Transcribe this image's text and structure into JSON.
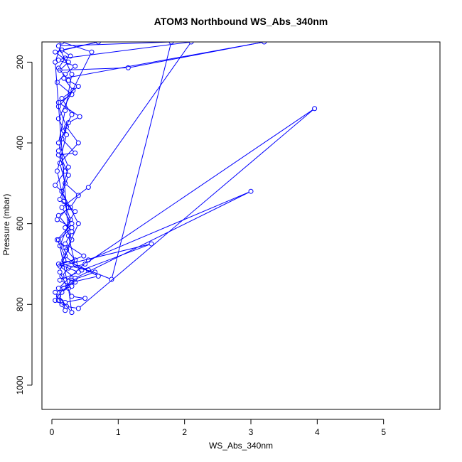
{
  "chart_data": {
    "type": "line",
    "title": "ATOM3 Northbound WS_Abs_340nm",
    "xlabel": "WS_Abs_340nm",
    "ylabel": "Pressure (mbar)",
    "xlim": [
      -0.15,
      5.85
    ],
    "ylim": [
      1060,
      150
    ],
    "y_reversed": true,
    "x_ticks": [
      0,
      1,
      2,
      3,
      4,
      5
    ],
    "y_ticks": [
      200,
      400,
      600,
      800,
      1000
    ],
    "grid": false,
    "legend": "none",
    "series_color": "#0000ff",
    "marker": "open-circle",
    "series": [
      {
        "name": "",
        "points": [
          [
            0.2,
            815
          ],
          [
            0.15,
            800
          ],
          [
            0.05,
            770
          ],
          [
            0.3,
            755
          ],
          [
            0.12,
            740
          ],
          [
            0.4,
            720
          ],
          [
            0.1,
            700
          ],
          [
            0.35,
            690
          ],
          [
            0.2,
            660
          ],
          [
            0.1,
            640
          ],
          [
            0.3,
            610
          ],
          [
            0.08,
            590
          ],
          [
            0.25,
            560
          ],
          [
            0.15,
            520
          ],
          [
            0.05,
            505
          ],
          [
            0.2,
            470
          ],
          [
            0.1,
            430
          ],
          [
            0.35,
            425
          ],
          [
            0.15,
            390
          ],
          [
            0.25,
            350
          ],
          [
            0.42,
            335
          ],
          [
            0.1,
            300
          ],
          [
            0.3,
            280
          ],
          [
            0.08,
            250
          ],
          [
            0.2,
            230
          ],
          [
            0.35,
            210
          ],
          [
            0.1,
            195
          ],
          [
            0.28,
            185
          ],
          [
            0.15,
            170
          ],
          [
            0.7,
            150
          ],
          [
            0.05,
            175
          ],
          [
            0.25,
            200
          ],
          [
            0.12,
            220
          ],
          [
            1.15,
            214
          ],
          [
            3.2,
            150
          ],
          [
            0.18,
            240
          ],
          [
            0.32,
            270
          ],
          [
            0.1,
            310
          ],
          [
            0.22,
            360
          ],
          [
            0.4,
            400
          ],
          [
            0.12,
            450
          ],
          [
            0.2,
            500
          ],
          [
            0.4,
            530
          ],
          [
            0.28,
            560
          ],
          [
            0.1,
            580
          ],
          [
            0.3,
            620
          ],
          [
            0.2,
            650
          ],
          [
            0.48,
            680
          ],
          [
            0.15,
            700
          ],
          [
            0.65,
            720
          ],
          [
            0.3,
            740
          ],
          [
            0.18,
            760
          ],
          [
            0.05,
            790
          ],
          [
            0.22,
            805
          ],
          [
            0.4,
            810
          ],
          [
            3.96,
            315
          ],
          [
            0.5,
            700
          ],
          [
            0.25,
            710
          ],
          [
            0.15,
            730
          ],
          [
            0.35,
            745
          ],
          [
            0.1,
            760
          ],
          [
            0.55,
            690
          ],
          [
            3.0,
            520
          ],
          [
            0.35,
            735
          ],
          [
            0.12,
            705
          ],
          [
            1.5,
            650
          ],
          [
            0.45,
            715
          ],
          [
            0.2,
            680
          ],
          [
            0.08,
            640
          ],
          [
            0.3,
            600
          ],
          [
            0.15,
            560
          ],
          [
            0.55,
            510
          ],
          [
            2.1,
            150
          ],
          [
            0.2,
            190
          ],
          [
            0.1,
            215
          ],
          [
            0.25,
            245
          ],
          [
            0.4,
            260
          ],
          [
            0.15,
            290
          ],
          [
            0.3,
            330
          ],
          [
            0.18,
            370
          ],
          [
            0.1,
            420
          ],
          [
            0.25,
            480
          ],
          [
            0.12,
            540
          ],
          [
            0.35,
            570
          ],
          [
            0.2,
            610
          ],
          [
            0.3,
            640
          ],
          [
            0.18,
            690
          ],
          [
            0.55,
            715
          ],
          [
            0.9,
            738
          ],
          [
            1.8,
            150
          ],
          [
            0.1,
            160
          ],
          [
            0.3,
            230
          ],
          [
            0.2,
            320
          ],
          [
            0.1,
            400
          ],
          [
            0.25,
            460
          ],
          [
            0.15,
            520
          ],
          [
            0.4,
            600
          ],
          [
            0.22,
            665
          ],
          [
            0.12,
            720
          ],
          [
            0.3,
            780
          ],
          [
            0.5,
            785
          ],
          [
            0.2,
            795
          ],
          [
            0.1,
            780
          ],
          [
            0.3,
            820
          ],
          [
            0.25,
            760
          ],
          [
            0.12,
            655
          ],
          [
            0.28,
            590
          ],
          [
            0.18,
            545
          ],
          [
            0.08,
            470
          ],
          [
            0.22,
            380
          ],
          [
            0.1,
            340
          ],
          [
            0.6,
            175
          ],
          [
            0.15,
            150
          ],
          [
            0.05,
            200
          ],
          [
            0.25,
            630
          ],
          [
            0.35,
            700
          ],
          [
            0.7,
            730
          ],
          [
            0.3,
            745
          ],
          [
            0.15,
            770
          ],
          [
            0.1,
            790
          ]
        ]
      }
    ]
  }
}
